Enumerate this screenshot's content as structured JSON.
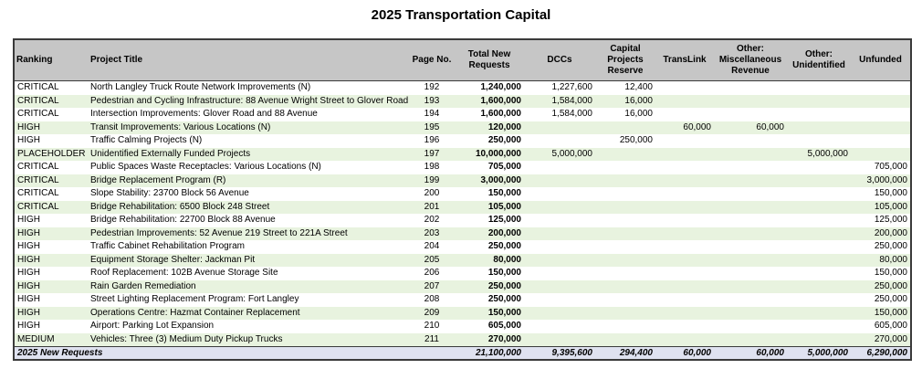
{
  "title": "2025 Transportation Capital",
  "headers": {
    "ranking": "Ranking",
    "project": "Project Title",
    "page": "Page No.",
    "total": "Total New Requests",
    "dccs": "DCCs",
    "capital": "Capital Projects Reserve",
    "translink": "TransLink",
    "misc": "Other: Miscellaneous Revenue",
    "unidentified": "Other: Unidentified",
    "unfunded": "Unfunded"
  },
  "rows": [
    {
      "ranking": "CRITICAL",
      "project": "North Langley Truck Route Network Improvements (N)",
      "page": "192",
      "total": "1,240,000",
      "dccs": "1,227,600",
      "capital": "12,400",
      "translink": "",
      "misc": "",
      "unidentified": "",
      "unfunded": ""
    },
    {
      "ranking": "CRITICAL",
      "project": "Pedestrian and Cycling Infrastructure: 88 Avenue Wright Street to Glover Road",
      "page": "193",
      "total": "1,600,000",
      "dccs": "1,584,000",
      "capital": "16,000",
      "translink": "",
      "misc": "",
      "unidentified": "",
      "unfunded": ""
    },
    {
      "ranking": "CRITICAL",
      "project": "Intersection Improvements: Glover Road and 88 Avenue",
      "page": "194",
      "total": "1,600,000",
      "dccs": "1,584,000",
      "capital": "16,000",
      "translink": "",
      "misc": "",
      "unidentified": "",
      "unfunded": ""
    },
    {
      "ranking": "HIGH",
      "project": "Transit Improvements: Various Locations (N)",
      "page": "195",
      "total": "120,000",
      "dccs": "",
      "capital": "",
      "translink": "60,000",
      "misc": "60,000",
      "unidentified": "",
      "unfunded": ""
    },
    {
      "ranking": "HIGH",
      "project": "Traffic Calming Projects (N)",
      "page": "196",
      "total": "250,000",
      "dccs": "",
      "capital": "250,000",
      "translink": "",
      "misc": "",
      "unidentified": "",
      "unfunded": ""
    },
    {
      "ranking": "PLACEHOLDER",
      "project": "Unidentified Externally Funded Projects",
      "page": "197",
      "total": "10,000,000",
      "dccs": "5,000,000",
      "capital": "",
      "translink": "",
      "misc": "",
      "unidentified": "5,000,000",
      "unfunded": ""
    },
    {
      "ranking": "CRITICAL",
      "project": "Public Spaces Waste Receptacles: Various Locations (N)",
      "page": "198",
      "total": "705,000",
      "dccs": "",
      "capital": "",
      "translink": "",
      "misc": "",
      "unidentified": "",
      "unfunded": "705,000"
    },
    {
      "ranking": "CRITICAL",
      "project": "Bridge Replacement Program (R)",
      "page": "199",
      "total": "3,000,000",
      "dccs": "",
      "capital": "",
      "translink": "",
      "misc": "",
      "unidentified": "",
      "unfunded": "3,000,000"
    },
    {
      "ranking": "CRITICAL",
      "project": "Slope Stability: 23700 Block 56 Avenue",
      "page": "200",
      "total": "150,000",
      "dccs": "",
      "capital": "",
      "translink": "",
      "misc": "",
      "unidentified": "",
      "unfunded": "150,000"
    },
    {
      "ranking": "CRITICAL",
      "project": "Bridge Rehabilitation: 6500 Block 248 Street",
      "page": "201",
      "total": "105,000",
      "dccs": "",
      "capital": "",
      "translink": "",
      "misc": "",
      "unidentified": "",
      "unfunded": "105,000"
    },
    {
      "ranking": "HIGH",
      "project": "Bridge Rehabilitation: 22700 Block 88 Avenue",
      "page": "202",
      "total": "125,000",
      "dccs": "",
      "capital": "",
      "translink": "",
      "misc": "",
      "unidentified": "",
      "unfunded": "125,000"
    },
    {
      "ranking": "HIGH",
      "project": "Pedestrian Improvements: 52 Avenue 219 Street to 221A Street",
      "page": "203",
      "total": "200,000",
      "dccs": "",
      "capital": "",
      "translink": "",
      "misc": "",
      "unidentified": "",
      "unfunded": "200,000"
    },
    {
      "ranking": "HIGH",
      "project": "Traffic Cabinet Rehabilitation Program",
      "page": "204",
      "total": "250,000",
      "dccs": "",
      "capital": "",
      "translink": "",
      "misc": "",
      "unidentified": "",
      "unfunded": "250,000"
    },
    {
      "ranking": "HIGH",
      "project": "Equipment Storage Shelter: Jackman Pit",
      "page": "205",
      "total": "80,000",
      "dccs": "",
      "capital": "",
      "translink": "",
      "misc": "",
      "unidentified": "",
      "unfunded": "80,000"
    },
    {
      "ranking": "HIGH",
      "project": "Roof Replacement: 102B Avenue Storage Site",
      "page": "206",
      "total": "150,000",
      "dccs": "",
      "capital": "",
      "translink": "",
      "misc": "",
      "unidentified": "",
      "unfunded": "150,000"
    },
    {
      "ranking": "HIGH",
      "project": "Rain Garden Remediation",
      "page": "207",
      "total": "250,000",
      "dccs": "",
      "capital": "",
      "translink": "",
      "misc": "",
      "unidentified": "",
      "unfunded": "250,000"
    },
    {
      "ranking": "HIGH",
      "project": "Street Lighting Replacement Program: Fort Langley",
      "page": "208",
      "total": "250,000",
      "dccs": "",
      "capital": "",
      "translink": "",
      "misc": "",
      "unidentified": "",
      "unfunded": "250,000"
    },
    {
      "ranking": "HIGH",
      "project": "Operations Centre: Hazmat Container Replacement",
      "page": "209",
      "total": "150,000",
      "dccs": "",
      "capital": "",
      "translink": "",
      "misc": "",
      "unidentified": "",
      "unfunded": "150,000"
    },
    {
      "ranking": "HIGH",
      "project": "Airport: Parking Lot Expansion",
      "page": "210",
      "total": "605,000",
      "dccs": "",
      "capital": "",
      "translink": "",
      "misc": "",
      "unidentified": "",
      "unfunded": "605,000"
    },
    {
      "ranking": "MEDIUM",
      "project": "Vehicles: Three (3) Medium Duty Pickup Trucks",
      "page": "211",
      "total": "270,000",
      "dccs": "",
      "capital": "",
      "translink": "",
      "misc": "",
      "unidentified": "",
      "unfunded": "270,000"
    }
  ],
  "footer": {
    "label": "2025 New Requests",
    "total": "21,100,000",
    "dccs": "9,395,600",
    "capital": "294,400",
    "translink": "60,000",
    "misc": "60,000",
    "unidentified": "5,000,000",
    "unfunded": "6,290,000"
  },
  "colors": {
    "header_bg": "#c6c6c6",
    "alt_row_bg": "#e8f3df",
    "footer_bg": "#dfe2f0"
  }
}
